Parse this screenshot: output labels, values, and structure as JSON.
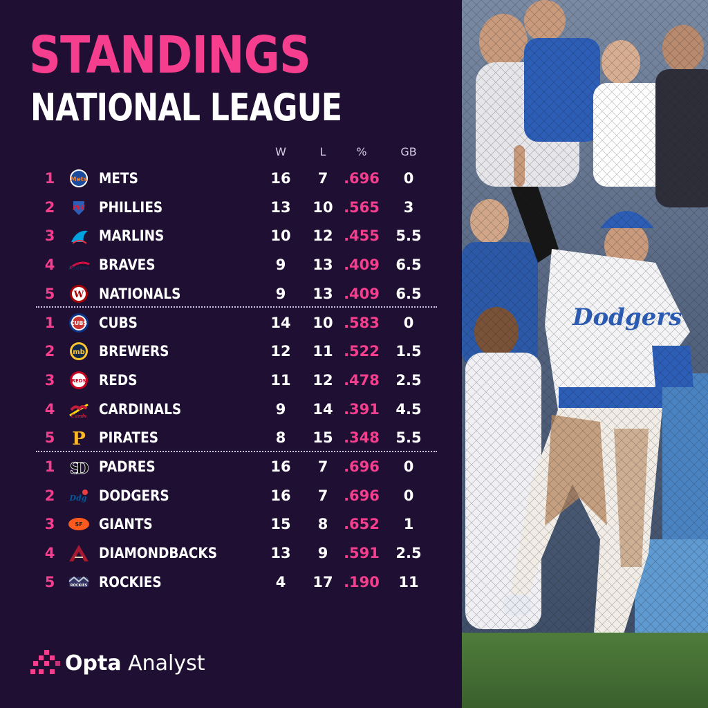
{
  "title": "STANDINGS",
  "subtitle": "NATIONAL LEAGUE",
  "columns": {
    "w": "W",
    "l": "L",
    "pct": "%",
    "gb": "GB"
  },
  "divisions": [
    {
      "teams": [
        {
          "rank": "1",
          "team": "METS",
          "w": "16",
          "l": "7",
          "pct": ".696",
          "gb": "0"
        },
        {
          "rank": "2",
          "team": "PHILLIES",
          "w": "13",
          "l": "10",
          "pct": ".565",
          "gb": "3"
        },
        {
          "rank": "3",
          "team": "MARLINS",
          "w": "10",
          "l": "12",
          "pct": ".455",
          "gb": "5.5"
        },
        {
          "rank": "4",
          "team": "BRAVES",
          "w": "9",
          "l": "13",
          "pct": ".409",
          "gb": "6.5"
        },
        {
          "rank": "5",
          "team": "NATIONALS",
          "w": "9",
          "l": "13",
          "pct": ".409",
          "gb": "6.5"
        }
      ]
    },
    {
      "teams": [
        {
          "rank": "1",
          "team": "CUBS",
          "w": "14",
          "l": "10",
          "pct": ".583",
          "gb": "0"
        },
        {
          "rank": "2",
          "team": "BREWERS",
          "w": "12",
          "l": "11",
          "pct": ".522",
          "gb": "1.5"
        },
        {
          "rank": "3",
          "team": "REDS",
          "w": "11",
          "l": "12",
          "pct": ".478",
          "gb": "2.5"
        },
        {
          "rank": "4",
          "team": "CARDINALS",
          "w": "9",
          "l": "14",
          "pct": ".391",
          "gb": "4.5"
        },
        {
          "rank": "5",
          "team": "PIRATES",
          "w": "8",
          "l": "15",
          "pct": ".348",
          "gb": "5.5"
        }
      ]
    },
    {
      "teams": [
        {
          "rank": "1",
          "team": "PADRES",
          "w": "16",
          "l": "7",
          "pct": ".696",
          "gb": "0"
        },
        {
          "rank": "2",
          "team": "DODGERS",
          "w": "16",
          "l": "7",
          "pct": ".696",
          "gb": "0"
        },
        {
          "rank": "3",
          "team": "GIANTS",
          "w": "15",
          "l": "8",
          "pct": ".652",
          "gb": "1"
        },
        {
          "rank": "4",
          "team": "DIAMONDBACKS",
          "w": "13",
          "l": "9",
          "pct": ".591",
          "gb": "2.5"
        },
        {
          "rank": "5",
          "team": "ROCKIES",
          "w": "4",
          "l": "17",
          "pct": ".190",
          "gb": "11"
        }
      ]
    }
  ],
  "brand": {
    "bold": "Opta",
    "light": "Analyst"
  },
  "colors": {
    "background": "#1f0f33",
    "accent": "#f53f8e",
    "text": "#ffffff"
  },
  "icons": [
    "mets-logo-icon",
    "phillies-logo-icon",
    "marlins-logo-icon",
    "braves-logo-icon",
    "nationals-logo-icon",
    "cubs-logo-icon",
    "brewers-logo-icon",
    "reds-logo-icon",
    "cardinals-logo-icon",
    "pirates-logo-icon",
    "padres-logo-icon",
    "dodgers-logo-icon",
    "giants-logo-icon",
    "diamondbacks-logo-icon",
    "rockies-logo-icon",
    "opta-analyst-logo-icon"
  ]
}
